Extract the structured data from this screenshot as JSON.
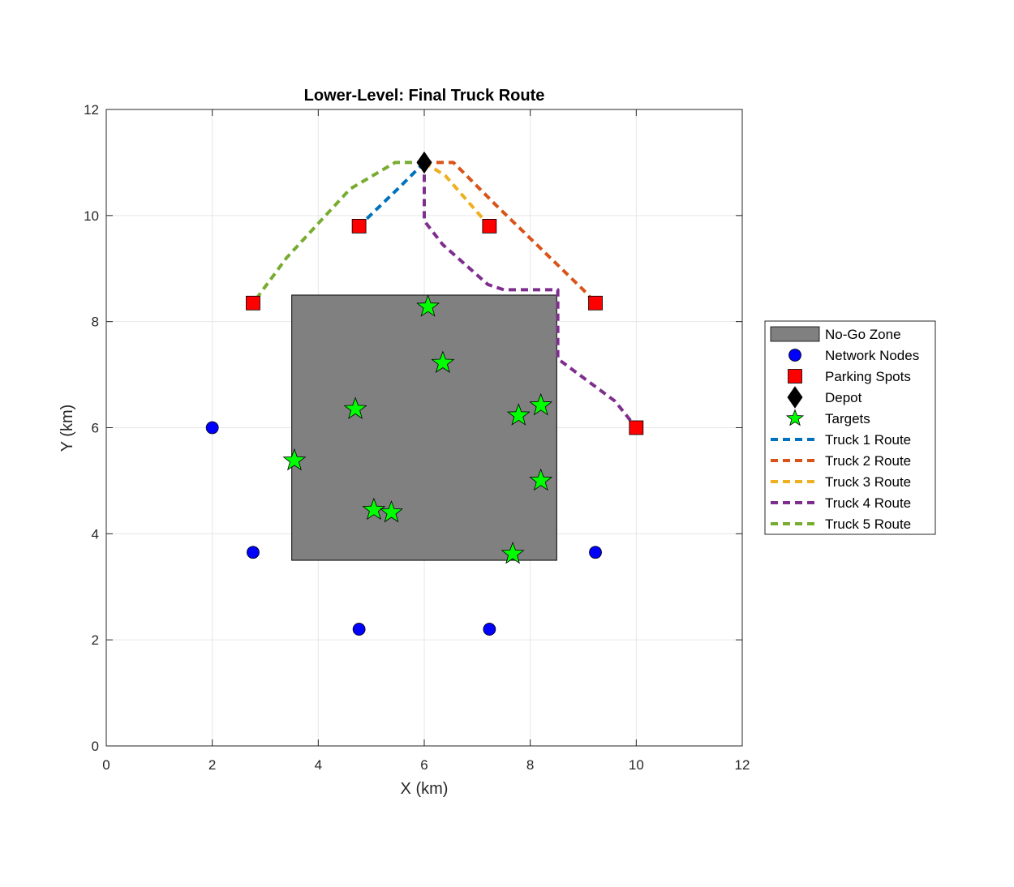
{
  "chart_data": {
    "type": "scatter",
    "title": "Lower-Level: Final Truck Route",
    "xlabel": "X (km)",
    "ylabel": "Y (km)",
    "xlim": [
      0,
      12
    ],
    "ylim": [
      0,
      12
    ],
    "xticks": [
      "0",
      "2",
      "4",
      "6",
      "8",
      "10",
      "12"
    ],
    "yticks": [
      "0",
      "2",
      "4",
      "6",
      "8",
      "10",
      "12"
    ],
    "grid": true,
    "legend_position": "outside-right",
    "no_go_zone": {
      "name": "No-Go Zone",
      "x": [
        3.5,
        8.5
      ],
      "y": [
        3.5,
        8.5
      ],
      "color": "#808080"
    },
    "network_nodes": {
      "name": "Network Nodes",
      "color": "#0000FF",
      "points": [
        [
          2,
          6
        ],
        [
          2.77,
          3.65
        ],
        [
          4.77,
          2.2
        ],
        [
          7.23,
          2.2
        ],
        [
          9.23,
          3.65
        ]
      ]
    },
    "parking_spots": {
      "name": "Parking Spots",
      "color": "#FF0000",
      "points": [
        [
          2.77,
          8.35
        ],
        [
          4.77,
          9.8
        ],
        [
          7.23,
          9.8
        ],
        [
          9.23,
          8.35
        ],
        [
          10,
          6
        ]
      ]
    },
    "depot": {
      "name": "Depot",
      "color": "#000000",
      "points": [
        [
          6,
          11
        ]
      ]
    },
    "targets": {
      "name": "Targets",
      "color": "#00FF00",
      "points": [
        [
          6.07,
          8.28
        ],
        [
          6.35,
          7.22
        ],
        [
          4.7,
          6.35
        ],
        [
          7.78,
          6.23
        ],
        [
          8.2,
          6.42
        ],
        [
          3.55,
          5.38
        ],
        [
          8.2,
          5.0
        ],
        [
          5.05,
          4.45
        ],
        [
          5.38,
          4.4
        ],
        [
          7.67,
          3.62
        ]
      ]
    },
    "series": [
      {
        "name": "Truck 1 Route",
        "color": "#0072BD",
        "points": [
          [
            6,
            11
          ],
          [
            5.55,
            10.55
          ],
          [
            4.77,
            9.8
          ]
        ]
      },
      {
        "name": "Truck 2 Route",
        "color": "#D95319",
        "points": [
          [
            6,
            11
          ],
          [
            6.55,
            11
          ],
          [
            7.35,
            10.2
          ],
          [
            9.0,
            8.6
          ],
          [
            9.23,
            8.35
          ]
        ]
      },
      {
        "name": "Truck 3 Route",
        "color": "#EDB120",
        "points": [
          [
            6,
            11
          ],
          [
            6.4,
            10.75
          ],
          [
            7.23,
            9.8
          ]
        ]
      },
      {
        "name": "Truck 4 Route",
        "color": "#7E2F8E",
        "points": [
          [
            6,
            11
          ],
          [
            6,
            9.9
          ],
          [
            6.35,
            9.45
          ],
          [
            7.2,
            8.7
          ],
          [
            7.5,
            8.6
          ],
          [
            8.52,
            8.6
          ],
          [
            8.52,
            7.3
          ],
          [
            9.6,
            6.5
          ],
          [
            10,
            6
          ]
        ]
      },
      {
        "name": "Truck 5 Route",
        "color": "#77AC30",
        "points": [
          [
            6,
            11
          ],
          [
            5.45,
            11
          ],
          [
            4.6,
            10.5
          ],
          [
            3.4,
            9.2
          ],
          [
            2.77,
            8.35
          ]
        ]
      }
    ]
  }
}
